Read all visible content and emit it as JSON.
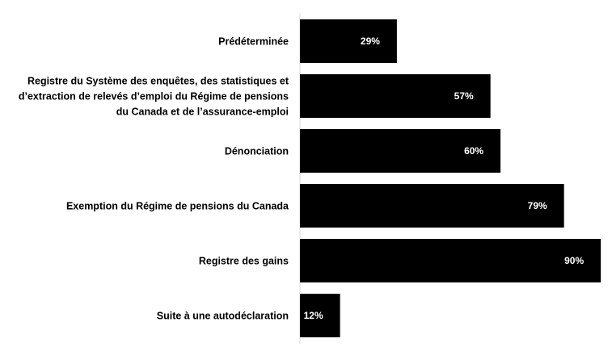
{
  "chart_data": {
    "type": "bar",
    "orientation": "horizontal",
    "categories": [
      [
        "Prédéterminée"
      ],
      [
        "Registre du Système des enquêtes, des statistiques et",
        "d’extraction de relevés d’emploi du Régime de pensions",
        "du Canada et de l’assurance-emploi"
      ],
      [
        "Dénonciation"
      ],
      [
        "Exemption du Régime de pensions du Canada"
      ],
      [
        "Registre des gains"
      ],
      [
        "Suite à une autodéclaration"
      ]
    ],
    "values": [
      29,
      57,
      60,
      79,
      90,
      12
    ],
    "value_labels": [
      "29%",
      "57%",
      "60%",
      "79%",
      "90%",
      "12%"
    ],
    "xlim": [
      0,
      92
    ],
    "title": "",
    "xlabel": "",
    "ylabel": "",
    "grid": false,
    "legend": "none",
    "colors": {
      "bar": "#000000",
      "value_label": "#ffffff",
      "category_label": "#000000",
      "axis": "#d9d9d9"
    }
  }
}
